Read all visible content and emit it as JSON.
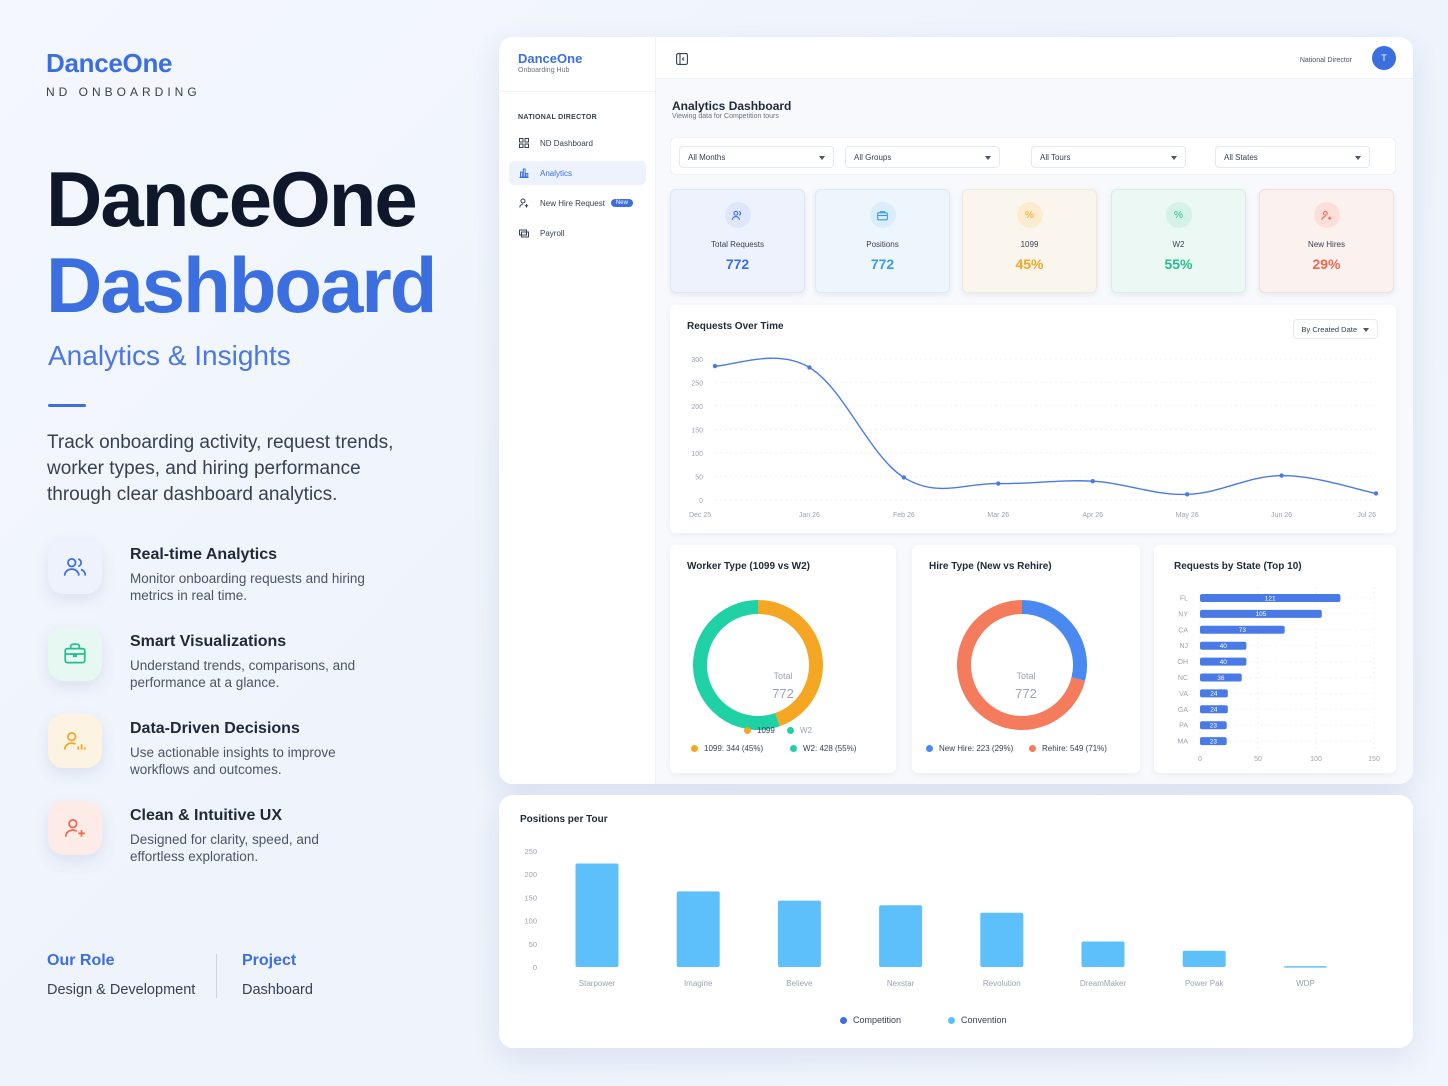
{
  "hero": {
    "brand": "DanceOne",
    "brand_sub": "ND ONBOARDING",
    "title_line1": "DanceOne",
    "title_line2": "Dashboard",
    "tagline": "Analytics & Insights",
    "lead": "Track onboarding activity, request trends, worker types, and hiring performance through clear dashboard analytics.",
    "features": [
      {
        "title": "Real-time Analytics",
        "desc": "Monitor onboarding requests and hiring metrics in real time.",
        "icon": "users-icon"
      },
      {
        "title": "Smart Visualizations",
        "desc": "Understand trends, comparisons, and performance at a glance.",
        "icon": "briefcase-icon"
      },
      {
        "title": "Data-Driven Decisions",
        "desc": "Use actionable insights to improve workflows and outcomes.",
        "icon": "user-chart-icon"
      },
      {
        "title": "Clean & Intuitive UX",
        "desc": "Designed for clarity, speed, and effortless exploration.",
        "icon": "user-plus-icon"
      }
    ],
    "role_label": "Our Role",
    "role_value": "Design & Development",
    "project_label": "Project",
    "project_value": "Dashboard"
  },
  "sidebar": {
    "brand": "DanceOne",
    "brand_sub": "Onboarding Hub",
    "section": "NATIONAL DIRECTOR",
    "items": [
      {
        "label": "ND Dashboard",
        "icon": "grid-icon"
      },
      {
        "label": "Analytics",
        "icon": "bar-chart-icon"
      },
      {
        "label": "New Hire Request",
        "icon": "user-add-icon",
        "badge": "New"
      },
      {
        "label": "Payroll",
        "icon": "payroll-icon"
      }
    ]
  },
  "topbar": {
    "role": "National Director",
    "avatar": "T"
  },
  "page": {
    "title": "Analytics Dashboard",
    "subtitle": "Viewing data for Competition tours"
  },
  "filters": [
    "All Months",
    "All Groups",
    "All Tours",
    "All States"
  ],
  "kpis": [
    {
      "label": "Total Requests",
      "value": "772",
      "icon": "users-icon",
      "color": "#3b6fe0"
    },
    {
      "label": "Positions",
      "value": "772",
      "icon": "briefcase-icon",
      "color": "#3b9be0"
    },
    {
      "label": "1099",
      "value": "45%",
      "icon": "percent-icon",
      "color": "#f5a623"
    },
    {
      "label": "W2",
      "value": "55%",
      "icon": "percent-icon",
      "color": "#1fbf8f"
    },
    {
      "label": "New Hires",
      "value": "29%",
      "icon": "user-plus-icon",
      "color": "#f0684d"
    }
  ],
  "requests_card": {
    "title": "Requests Over Time",
    "sort": "By Created Date"
  },
  "worker_card": {
    "title": "Worker Type (1099 vs W2)",
    "center_label": "Total",
    "center_value": "772",
    "legend_short": [
      "1099",
      "W2"
    ],
    "legend_detail": [
      "1099: 344 (45%)",
      "W2: 428 (55%)"
    ]
  },
  "hire_card": {
    "title": "Hire Type (New vs Rehire)",
    "center_label": "Total",
    "center_value": "772",
    "legend_detail": [
      "New Hire: 223 (29%)",
      "Rehire: 549 (71%)"
    ]
  },
  "state_card": {
    "title": "Requests by State (Top 10)"
  },
  "positions_card": {
    "title": "Positions per Tour",
    "legend": [
      "Competition",
      "Convention"
    ]
  },
  "chart_data": [
    {
      "type": "line",
      "title": "Requests Over Time",
      "x": [
        "Dec 25",
        "Jan 26",
        "Feb 26",
        "Mar 26",
        "Apr 26",
        "May 26",
        "Jun 26",
        "Jul 26"
      ],
      "values": [
        285,
        282,
        48,
        35,
        40,
        12,
        52,
        14
      ],
      "yticks": [
        300,
        250,
        200,
        150,
        100,
        50,
        0
      ],
      "ylim": [
        0,
        300
      ],
      "color": "#4a7ae8"
    },
    {
      "type": "pie",
      "title": "Worker Type (1099 vs W2)",
      "labels": [
        "1099",
        "W2"
      ],
      "values": [
        344,
        428
      ],
      "colors": [
        "#f5a623",
        "#1fd1a4"
      ]
    },
    {
      "type": "pie",
      "title": "Hire Type (New vs Rehire)",
      "labels": [
        "New Hire",
        "Rehire"
      ],
      "values": [
        223,
        549
      ],
      "colors": [
        "#4a8af0",
        "#f47b5c"
      ]
    },
    {
      "type": "bar",
      "orientation": "horizontal",
      "title": "Requests by State (Top 10)",
      "categories": [
        "FL",
        "NY",
        "CA",
        "NJ",
        "OH",
        "NC",
        "VA",
        "GA",
        "PA",
        "MA"
      ],
      "values": [
        121,
        105,
        73,
        40,
        40,
        36,
        24,
        24,
        23,
        23
      ],
      "xticks": [
        0,
        50,
        100,
        150
      ],
      "xlim": [
        0,
        150
      ],
      "color": "#4a7ae8"
    },
    {
      "type": "bar",
      "title": "Positions per Tour",
      "categories": [
        "Starpower",
        "Imagine",
        "Believe",
        "Nexstar",
        "Revolution",
        "DreamMaker",
        "Power Pak",
        "WDP"
      ],
      "series": [
        {
          "name": "Competition",
          "values": [
            0,
            0,
            0,
            0,
            0,
            0,
            0,
            0
          ]
        },
        {
          "name": "Convention",
          "values": [
            223,
            163,
            143,
            133,
            117,
            55,
            35,
            2
          ]
        }
      ],
      "yticks": [
        250,
        200,
        150,
        100,
        50,
        0
      ],
      "ylim": [
        0,
        250
      ],
      "colors": [
        "#3b6fe0",
        "#5ec0fb"
      ]
    }
  ]
}
